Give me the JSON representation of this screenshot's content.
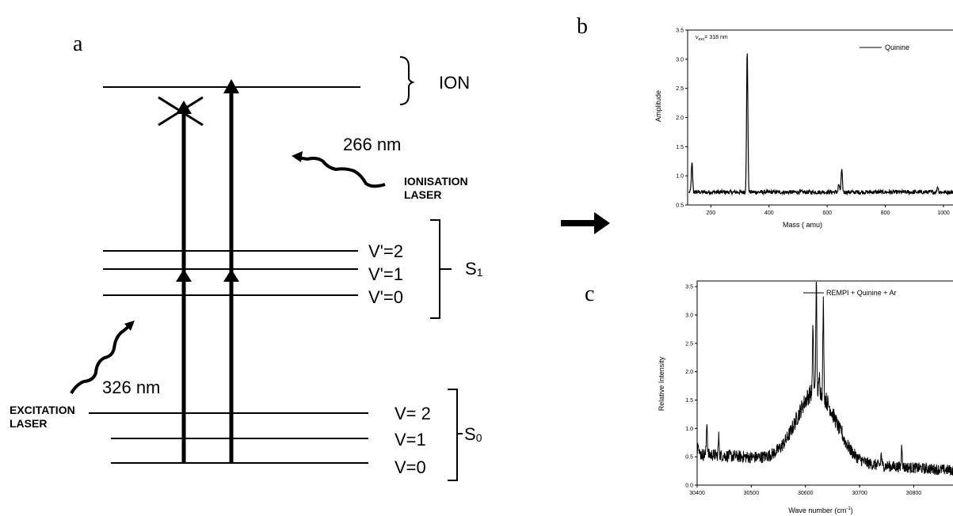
{
  "panel_labels": {
    "a": "a",
    "b": "b",
    "c": "c"
  },
  "energy_diagram": {
    "ion_label": "ION",
    "ionisation_wavelength": "266 nm",
    "ionisation_laser": [
      "IONISATION",
      "LASER"
    ],
    "excitation_wavelength": "326 nm",
    "excitation_laser": [
      "EXCITATION",
      "LASER"
    ],
    "s1_levels": [
      "V'=2",
      "V'=1",
      "V'=0"
    ],
    "s1_label_main": "S",
    "s1_label_sub": "1",
    "s0_levels": [
      "V= 2",
      "V=1",
      "V=0"
    ],
    "s0_label_main": "S",
    "s0_label_sub": "0"
  },
  "chart_data": [
    {
      "id": "mass-spectrum",
      "type": "line",
      "annotation_symbol": "ν",
      "annotation_sub": "exc",
      "annotation_text": "= 318 nm",
      "legend": "Quinine",
      "xlabel": "Mass ( amu)",
      "ylabel": "Amplitude",
      "xlim": [
        120,
        1060
      ],
      "ylim": [
        0.5,
        3.5
      ],
      "xticks": [
        200,
        400,
        600,
        800,
        1000
      ],
      "xtick_labels": [
        "200",
        "400",
        "600",
        "800",
        "1000"
      ],
      "yticks": [
        0.5,
        1.0,
        1.5,
        2.0,
        2.5,
        3.0,
        3.5
      ],
      "ytick_labels": [
        "0.5",
        "1.0",
        "1.5",
        "2.0",
        "2.5",
        "3.0",
        "3.5"
      ],
      "baseline": 0.72,
      "peaks": [
        {
          "x": 135,
          "y": 1.22
        },
        {
          "x": 325,
          "y": 3.15
        },
        {
          "x": 640,
          "y": 0.85
        },
        {
          "x": 650,
          "y": 1.1
        },
        {
          "x": 980,
          "y": 0.82
        }
      ]
    },
    {
      "id": "rempi-spectrum",
      "type": "line",
      "legend": "REMPI + Quinine + Ar",
      "xlabel_main": "Wave number (cm",
      "xlabel_sup": "-1",
      "xlabel_end": ")",
      "ylabel": "Relative Intensity",
      "xlim": [
        30400,
        30890
      ],
      "ylim": [
        0.0,
        3.6
      ],
      "xticks": [
        30400,
        30500,
        30600,
        30700,
        30800
      ],
      "xtick_labels": [
        "30400",
        "30500",
        "30600",
        "30700",
        "30800"
      ],
      "yticks": [
        0.0,
        0.5,
        1.0,
        1.5,
        2.0,
        2.5,
        3.0,
        3.5
      ],
      "ytick_labels": [
        "0.0",
        "0.5",
        "1.0",
        "1.5",
        "2.0",
        "2.5",
        "3.0",
        "3.5"
      ],
      "envelope": {
        "center": 30620,
        "width": 35,
        "height": 1.25,
        "base_start": 0.55,
        "base_end": 0.25
      },
      "peaks": [
        {
          "x": 30402,
          "y": 0.82
        },
        {
          "x": 30418,
          "y": 1.15
        },
        {
          "x": 30440,
          "y": 0.85
        },
        {
          "x": 30614,
          "y": 2.85
        },
        {
          "x": 30620,
          "y": 3.6
        },
        {
          "x": 30626,
          "y": 1.9
        },
        {
          "x": 30633,
          "y": 3.2
        },
        {
          "x": 30667,
          "y": 0.95
        },
        {
          "x": 30740,
          "y": 0.55
        },
        {
          "x": 30778,
          "y": 0.72
        }
      ]
    }
  ]
}
